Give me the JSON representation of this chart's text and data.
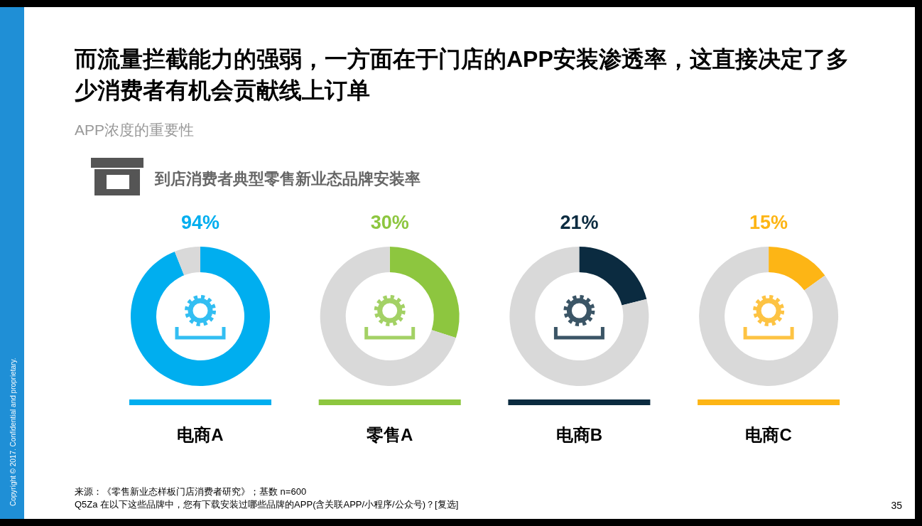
{
  "chart_data": [
    {
      "type": "other",
      "title": "而流量拦截能力的强弱，一方面在于门店的APP安装渗透率，这直接决定了多少消费者有机会贡献线上订单",
      "subtitle": "APP浓度的重要性",
      "annotations": [
        "到店消费者典型零售新业态品牌安装率",
        "来源：《零售新业态样板门店消费者研究》；基数 n=600",
        "Q5Za  在以下这些品牌中，您有下载安装过哪些品牌的APP(含关联APP/小程序/公众号)？[复选]",
        "35",
        "Copyright © 2017. Confidential and proprietary."
      ]
    },
    {
      "type": "donut",
      "title": "电商A",
      "categories": [
        null,
        null
      ],
      "values": [
        94,
        6
      ],
      "colors": [
        "#00aeef",
        "#d9d9d9"
      ],
      "value_labels": [
        "94%",
        null
      ]
    },
    {
      "type": "donut",
      "title": "零售A",
      "categories": [
        null,
        null
      ],
      "values": [
        30,
        70
      ],
      "colors": [
        "#8dc63f",
        "#d9d9d9"
      ],
      "value_labels": [
        "30%",
        null
      ]
    },
    {
      "type": "donut",
      "title": "电商B",
      "categories": [
        null,
        null
      ],
      "values": [
        21,
        79
      ],
      "colors": [
        "#0b2b40",
        "#d9d9d9"
      ],
      "value_labels": [
        "21%",
        null
      ]
    },
    {
      "type": "donut",
      "title": "电商C",
      "categories": [
        null,
        null
      ],
      "values": [
        15,
        85
      ],
      "colors": [
        "#fdb515",
        "#d9d9d9"
      ],
      "value_labels": [
        "15%",
        null
      ]
    }
  ]
}
